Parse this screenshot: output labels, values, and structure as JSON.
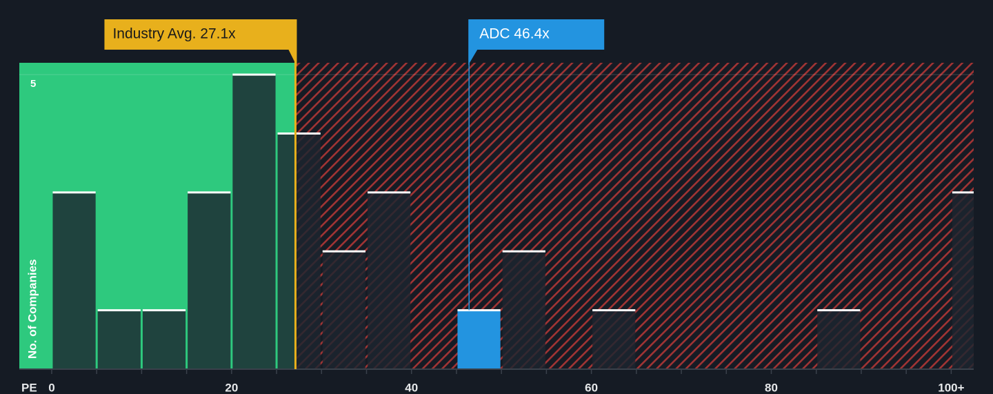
{
  "chart_data": {
    "type": "histogram",
    "xlabel": "PE",
    "ylabel": "No. of Companies",
    "bins": [
      0,
      5,
      10,
      15,
      20,
      25,
      30,
      35,
      40,
      45,
      50,
      55,
      60,
      65,
      70,
      75,
      80,
      85,
      90,
      95,
      100,
      105
    ],
    "values": [
      3,
      1,
      1,
      3,
      5,
      4,
      2,
      3,
      0,
      1,
      2,
      0,
      1,
      0,
      0,
      0,
      0,
      1,
      0,
      0,
      3
    ],
    "color": "#1c2630",
    "xlim": [
      -3.6,
      102.5
    ],
    "ylim": [
      0,
      5.2
    ],
    "xticks": [
      0,
      20,
      40,
      60,
      80,
      {
        "value": 100,
        "label": "100+"
      }
    ],
    "yticks": [
      5
    ],
    "annotations": [
      {
        "label": "Industry Avg. 27.1x",
        "value": 27.1,
        "color": "#e8b01c"
      },
      {
        "label": "ADC 46.4x",
        "value": 46.4,
        "color": "#2394e0"
      }
    ]
  }
}
